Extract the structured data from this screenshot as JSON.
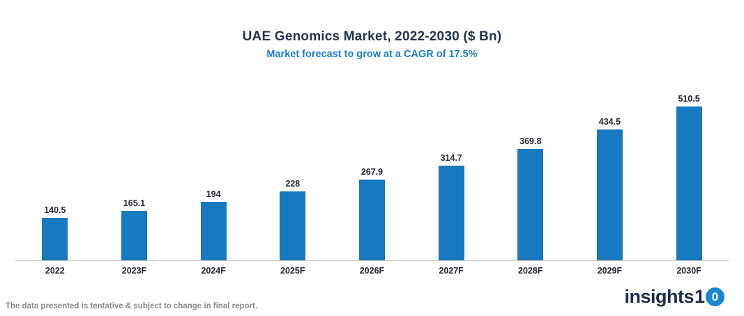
{
  "header": {
    "title": "UAE Genomics Market, 2022-2030 ($ Bn)",
    "subtitle": "Market forecast to grow at a CAGR of 17.5%"
  },
  "chart_data": {
    "type": "bar",
    "categories": [
      "2022",
      "2023F",
      "2024F",
      "2025F",
      "2026F",
      "2027F",
      "2028F",
      "2029F",
      "2030F"
    ],
    "values": [
      140.5,
      165.1,
      194,
      228,
      267.9,
      314.7,
      369.8,
      434.5,
      510.5
    ],
    "title": "UAE Genomics Market, 2022-2030 ($ Bn)",
    "subtitle": "Market forecast to grow at a CAGR of 17.5%",
    "xlabel": "",
    "ylabel": "",
    "ylim": [
      0,
      520
    ],
    "grid": false,
    "legend": false,
    "bar_color": "#1779c0"
  },
  "footer": {
    "disclaimer": "The data presented is tentative & subject to change in final report.",
    "logo": {
      "text": "insights",
      "digit_one": "1",
      "digit_zero": "0",
      "circle_color": "#1d86d0",
      "text_color": "#1b2f4e"
    }
  },
  "colors": {
    "title": "#1f3550",
    "subtitle": "#1d7ecb",
    "bar": "#1779c0",
    "axis_line": "#c8c8c8",
    "label": "#222a35",
    "disclaimer": "#8a8a8a"
  }
}
